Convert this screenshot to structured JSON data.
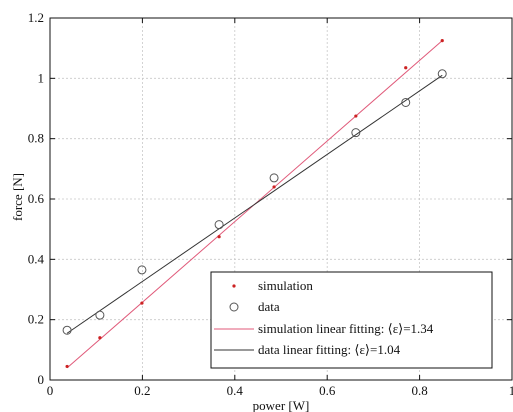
{
  "chart_data": {
    "type": "scatter",
    "xlabel": "power [W]",
    "ylabel": "force [N]",
    "xlim": [
      0,
      1
    ],
    "ylim": [
      0,
      1.2
    ],
    "xticks": [
      "0",
      "0.2",
      "0.4",
      "0.6",
      "0.8",
      "1"
    ],
    "yticks": [
      "0",
      "0.2",
      "0.4",
      "0.6",
      "0.8",
      "1",
      "1.2"
    ],
    "grid": true,
    "legend_position": "bottom-right",
    "series": [
      {
        "name": "simulation",
        "kind": "points",
        "marker": "dot",
        "color": "#cc2222",
        "x": [
          0.037,
          0.108,
          0.199,
          0.366,
          0.485,
          0.662,
          0.77,
          0.849
        ],
        "y": [
          0.045,
          0.14,
          0.255,
          0.475,
          0.64,
          0.875,
          1.035,
          1.125
        ]
      },
      {
        "name": "data",
        "kind": "points",
        "marker": "circle",
        "color": "#555555",
        "x": [
          0.037,
          0.108,
          0.199,
          0.366,
          0.485,
          0.662,
          0.77,
          0.849
        ],
        "y": [
          0.165,
          0.215,
          0.365,
          0.515,
          0.67,
          0.82,
          0.92,
          1.015
        ]
      },
      {
        "name": "simulation linear fitting: ⟨ε⟩=1.34",
        "kind": "line",
        "color": "#e05a7a",
        "x": [
          0.037,
          0.849
        ],
        "y": [
          0.04,
          1.125
        ]
      },
      {
        "name": "data linear fitting: ⟨ε⟩=1.04",
        "kind": "line",
        "color": "#333333",
        "x": [
          0.037,
          0.849
        ],
        "y": [
          0.155,
          1.01
        ]
      }
    ]
  }
}
